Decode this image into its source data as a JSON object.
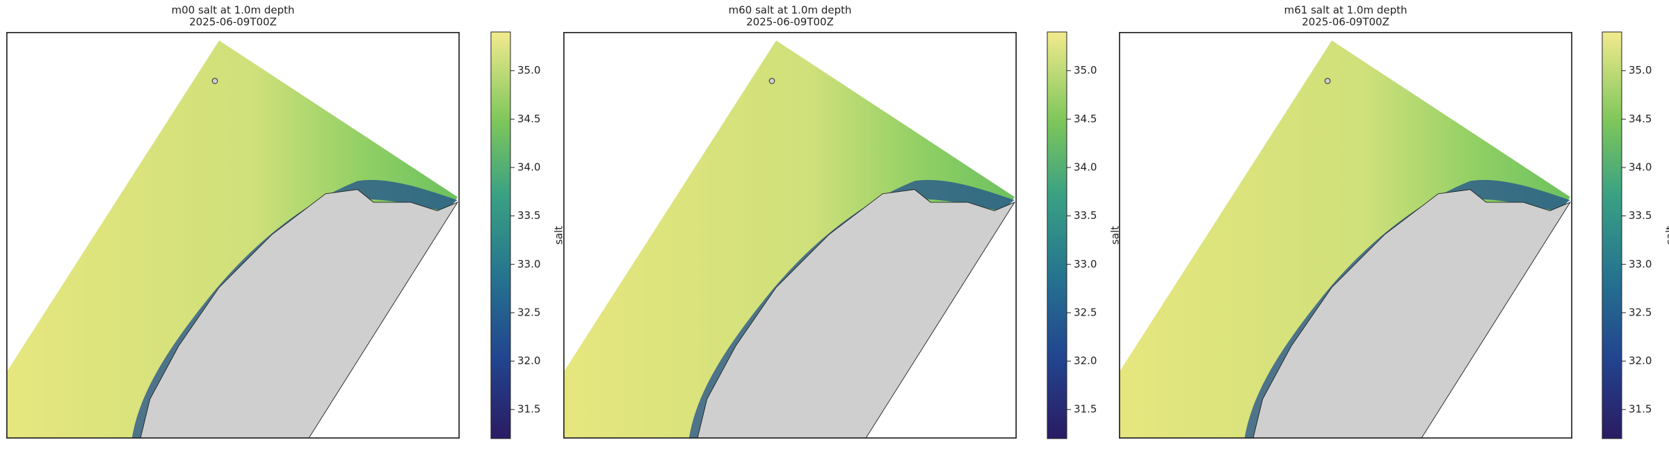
{
  "panels": [
    {
      "title": "m00 salt at 1.0m depth",
      "subtitle": "2025-06-09T00Z",
      "colorbar": {
        "label": "salt",
        "lim": [
          31.2,
          35.4
        ],
        "ticks": [
          31.5,
          {
            "value": 32,
            "label": "32.0"
          },
          32.5,
          {
            "value": 33,
            "label": "33.0"
          },
          33.5,
          {
            "value": 34,
            "label": "34.0"
          },
          34.5,
          {
            "value": 35,
            "label": "35.0"
          }
        ]
      }
    },
    {
      "title": "m60 salt at 1.0m depth",
      "subtitle": "2025-06-09T00Z",
      "colorbar": {
        "label": "salt",
        "lim": [
          31.2,
          35.4
        ],
        "ticks": [
          31.5,
          {
            "value": 32,
            "label": "32.0"
          },
          32.5,
          {
            "value": 33,
            "label": "33.0"
          },
          33.5,
          {
            "value": 34,
            "label": "34.0"
          },
          34.5,
          {
            "value": 35,
            "label": "35.0"
          }
        ]
      }
    },
    {
      "title": "m61 salt at 1.0m depth",
      "subtitle": "2025-06-09T00Z",
      "colorbar": {
        "label": "salt",
        "lim": [
          31.2,
          35.4
        ],
        "ticks": [
          31.5,
          {
            "value": 32,
            "label": "32.0"
          },
          32.5,
          {
            "value": 33,
            "label": "33.0"
          },
          33.5,
          {
            "value": 34,
            "label": "34.0"
          },
          34.5,
          {
            "value": 35,
            "label": "35.0"
          }
        ]
      }
    }
  ]
}
